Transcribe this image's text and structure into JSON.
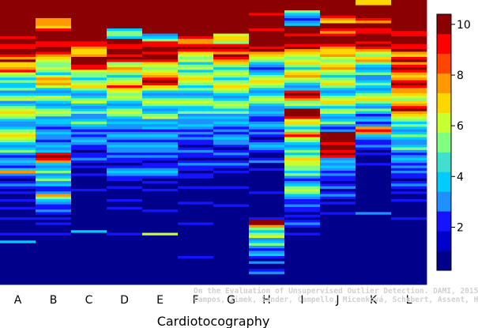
{
  "chart_data": {
    "type": "heatmap",
    "title": "",
    "xlabel": "Cardiotocography",
    "ylabel": "",
    "categories": [
      "A",
      "B",
      "C",
      "D",
      "E",
      "F",
      "G",
      "H",
      "I",
      "J",
      "K",
      "L"
    ],
    "colorbar": {
      "range": [
        0.3,
        10.4
      ],
      "ticks": [
        2,
        4,
        6,
        8,
        10
      ],
      "colors": [
        "#00008b",
        "#0000cd",
        "#1414ff",
        "#1e90ff",
        "#00ccff",
        "#40e0d0",
        "#80ff80",
        "#c8ff30",
        "#ffd700",
        "#ff9900",
        "#ff4500",
        "#ff0000",
        "#8b0000"
      ]
    },
    "rows_shown": 110,
    "columns": [
      [
        10,
        10,
        10,
        10,
        10,
        10,
        10,
        10,
        10,
        10,
        11,
        11,
        10,
        10,
        9,
        11,
        10,
        9,
        9,
        11,
        10,
        9,
        8,
        11,
        7,
        7,
        8,
        9,
        6,
        5,
        4,
        5,
        4,
        4,
        5,
        3,
        4,
        5,
        6,
        3,
        4,
        5,
        6,
        7,
        6,
        5,
        4,
        3,
        3,
        4,
        5,
        6,
        7,
        6,
        5,
        4,
        3,
        4,
        5,
        3,
        2,
        3,
        4,
        3,
        2,
        4,
        8,
        3,
        2,
        1,
        2,
        3,
        2,
        1,
        2,
        1,
        1,
        2,
        1,
        1,
        2,
        1,
        1,
        1,
        2,
        1,
        1,
        1,
        1,
        1,
        2,
        1,
        1,
        4,
        1,
        1,
        1,
        1,
        1,
        1,
        1,
        1,
        1,
        1,
        1,
        1,
        1,
        1,
        1,
        1
      ],
      [
        10,
        10,
        10,
        10,
        10,
        10,
        10,
        8,
        8,
        8,
        7,
        9,
        10,
        10,
        11,
        10,
        9,
        9,
        10,
        10,
        9,
        8,
        7,
        6,
        5,
        5,
        6,
        5,
        4,
        6,
        8,
        7,
        8,
        6,
        4,
        3,
        4,
        6,
        5,
        4,
        3,
        4,
        5,
        6,
        5,
        3,
        4,
        4,
        3,
        2,
        3,
        4,
        3,
        3,
        2,
        3,
        4,
        3,
        4,
        9,
        10,
        9,
        8,
        4,
        3,
        4,
        5,
        3,
        4,
        5,
        3,
        4,
        2,
        2,
        3,
        8,
        5,
        4,
        3,
        2,
        2,
        3,
        2,
        1,
        2,
        1,
        2,
        1,
        1,
        1,
        2,
        1,
        1,
        1,
        1,
        1,
        1,
        1,
        1,
        1,
        1,
        1,
        1,
        1,
        1,
        1,
        1,
        1,
        1,
        1
      ],
      [
        10,
        10,
        10,
        11,
        10,
        10,
        10,
        10,
        10,
        10,
        10,
        10,
        10,
        10,
        10,
        10,
        9,
        9,
        8,
        7,
        7,
        8,
        10,
        11,
        10,
        9,
        9,
        6,
        5,
        5,
        4,
        5,
        6,
        7,
        5,
        4,
        3,
        4,
        5,
        6,
        4,
        3,
        4,
        5,
        3,
        3,
        4,
        5,
        4,
        3,
        2,
        3,
        2,
        3,
        4,
        3,
        2,
        2,
        1,
        2,
        2,
        3,
        2,
        1,
        2,
        1,
        1,
        2,
        1,
        1,
        1,
        1,
        1,
        2,
        1,
        1,
        1,
        1,
        1,
        1,
        1,
        1,
        1,
        1,
        1,
        1,
        1,
        1,
        1,
        4,
        1,
        1,
        1,
        1,
        1,
        1,
        1,
        1,
        1,
        1,
        1,
        1,
        1,
        1,
        1,
        1,
        1,
        1,
        1,
        1
      ],
      [
        10,
        10,
        10,
        10,
        10,
        10,
        10,
        10,
        10,
        10,
        10,
        4,
        5,
        5,
        4,
        10,
        10,
        9,
        9,
        11,
        10,
        9,
        10,
        9,
        5,
        6,
        8,
        7,
        5,
        4,
        5,
        6,
        7,
        9,
        7,
        6,
        5,
        6,
        5,
        4,
        3,
        4,
        5,
        6,
        5,
        4,
        3,
        4,
        3,
        3,
        2,
        3,
        4,
        3,
        2,
        3,
        4,
        3,
        3,
        2,
        3,
        2,
        2,
        1,
        2,
        3,
        4,
        3,
        2,
        2,
        1,
        1,
        2,
        1,
        1,
        1,
        1,
        2,
        1,
        1,
        2,
        1,
        1,
        1,
        1,
        1,
        1,
        1,
        1,
        1,
        2,
        1,
        1,
        1,
        1,
        1,
        1,
        1,
        1,
        1,
        1,
        1,
        1,
        1,
        1,
        1,
        1,
        1,
        1,
        1
      ],
      [
        10,
        10,
        10,
        10,
        10,
        10,
        10,
        10,
        10,
        10,
        10,
        10,
        10,
        3,
        4,
        5,
        9,
        9,
        10,
        10,
        9,
        10,
        11,
        9,
        7,
        6,
        5,
        6,
        7,
        8,
        9,
        10,
        9,
        7,
        6,
        4,
        3,
        4,
        5,
        6,
        5,
        4,
        3,
        4,
        5,
        6,
        3,
        4,
        3,
        4,
        2,
        3,
        4,
        3,
        2,
        3,
        4,
        3,
        3,
        2,
        3,
        2,
        1,
        2,
        2,
        3,
        4,
        3,
        2,
        1,
        2,
        1,
        1,
        2,
        1,
        1,
        1,
        1,
        1,
        1,
        1,
        2,
        1,
        1,
        1,
        1,
        1,
        1,
        1,
        1,
        6,
        1,
        1,
        1,
        1,
        1,
        1,
        1,
        1,
        1,
        1,
        1,
        1,
        1,
        1,
        1,
        1,
        1,
        1,
        1
      ],
      [
        10,
        10,
        10,
        10,
        10,
        10,
        11,
        10,
        10,
        10,
        10,
        10,
        10,
        10,
        9,
        8,
        8,
        9,
        10,
        9,
        7,
        6,
        5,
        6,
        4,
        5,
        6,
        4,
        5,
        6,
        7,
        6,
        5,
        4,
        5,
        4,
        3,
        4,
        5,
        6,
        5,
        4,
        4,
        5,
        3,
        4,
        3,
        3,
        4,
        3,
        2,
        3,
        2,
        3,
        2,
        2,
        1,
        2,
        3,
        2,
        2,
        1,
        2,
        3,
        2,
        2,
        1,
        2,
        2,
        1,
        1,
        1,
        2,
        1,
        1,
        1,
        1,
        1,
        2,
        1,
        1,
        1,
        1,
        1,
        1,
        1,
        2,
        1,
        1,
        1,
        1,
        1,
        1,
        1,
        1,
        1,
        1,
        1,
        1,
        2,
        1,
        1,
        1,
        1,
        1,
        1,
        1,
        1,
        1,
        1
      ],
      [
        10,
        10,
        10,
        10,
        10,
        10,
        10,
        11,
        10,
        10,
        10,
        10,
        10,
        6,
        7,
        7,
        5,
        9,
        10,
        9,
        8,
        10,
        9,
        8,
        7,
        5,
        4,
        5,
        6,
        5,
        4,
        5,
        6,
        7,
        6,
        5,
        4,
        3,
        4,
        5,
        6,
        5,
        4,
        5,
        3,
        4,
        3,
        4,
        3,
        2,
        3,
        2,
        3,
        4,
        3,
        3,
        2,
        1,
        2,
        3,
        2,
        1,
        2,
        3,
        2,
        1,
        2,
        1,
        1,
        1,
        1,
        1,
        2,
        1,
        1,
        1,
        1,
        1,
        1,
        2,
        1,
        1,
        1,
        1,
        1,
        1,
        1,
        1,
        1,
        1,
        1,
        1,
        1,
        1,
        1,
        1,
        1,
        1,
        1,
        1,
        1,
        1,
        1,
        1,
        1,
        1,
        1,
        1,
        1,
        1
      ],
      [
        10,
        10,
        10,
        10,
        10,
        9,
        10,
        10,
        11,
        10,
        10,
        9,
        10,
        10,
        11,
        11,
        10,
        10,
        9,
        10,
        8,
        7,
        6,
        5,
        4,
        3,
        2,
        3,
        4,
        5,
        6,
        7,
        6,
        5,
        4,
        3,
        4,
        5,
        6,
        5,
        4,
        3,
        3,
        4,
        3,
        2,
        2,
        3,
        4,
        3,
        2,
        3,
        2,
        1,
        2,
        3,
        4,
        3,
        2,
        1,
        1,
        2,
        3,
        1,
        1,
        2,
        1,
        1,
        1,
        1,
        1,
        1,
        1,
        1,
        2,
        1,
        1,
        1,
        1,
        1,
        1,
        1,
        1,
        1,
        2,
        11,
        10,
        8,
        5,
        4,
        5,
        6,
        3,
        4,
        5,
        3,
        2,
        3,
        4,
        2,
        1,
        3,
        1,
        1,
        2,
        3,
        1,
        1,
        1,
        1
      ],
      [
        10,
        10,
        11,
        10,
        5,
        4,
        3,
        2,
        3,
        4,
        10,
        11,
        10,
        9,
        10,
        11,
        10,
        9,
        10,
        8,
        7,
        6,
        5,
        6,
        7,
        5,
        4,
        6,
        7,
        8,
        6,
        5,
        4,
        3,
        4,
        9,
        10,
        9,
        8,
        5,
        6,
        4,
        10,
        11,
        10,
        9,
        6,
        7,
        5,
        4,
        5,
        8,
        9,
        6,
        5,
        4,
        3,
        4,
        5,
        4,
        5,
        7,
        6,
        6,
        5,
        5,
        4,
        5,
        3,
        2,
        3,
        4,
        5,
        6,
        5,
        4,
        3,
        2,
        2,
        3,
        2,
        2,
        1,
        2,
        1,
        2,
        3,
        2,
        1,
        1,
        2,
        1,
        1,
        1,
        1,
        1,
        1,
        1,
        1,
        1,
        1,
        1,
        1,
        1,
        1,
        1,
        1,
        1,
        1,
        1
      ],
      [
        10,
        10,
        10,
        10,
        10,
        10,
        9,
        8,
        7,
        10,
        10,
        9,
        8,
        9,
        10,
        11,
        10,
        9,
        8,
        7,
        7,
        8,
        6,
        5,
        6,
        7,
        8,
        6,
        5,
        4,
        5,
        6,
        7,
        5,
        4,
        3,
        4,
        5,
        6,
        7,
        5,
        4,
        5,
        6,
        4,
        3,
        4,
        5,
        3,
        2,
        3,
        10,
        11,
        11,
        10,
        9,
        10,
        10,
        9,
        10,
        9,
        3,
        4,
        3,
        4,
        3,
        2,
        3,
        2,
        2,
        1,
        2,
        3,
        1,
        2,
        3,
        2,
        1,
        2,
        1,
        1,
        1,
        2,
        1,
        1,
        1,
        1,
        1,
        1,
        1,
        1,
        1,
        1,
        1,
        1,
        1,
        1,
        1,
        1,
        1,
        1,
        1,
        1,
        1,
        1,
        1,
        1,
        1,
        1,
        1
      ],
      [
        7,
        7,
        10,
        10,
        10,
        10,
        10,
        9,
        8,
        11,
        10,
        9,
        9,
        10,
        10,
        10,
        9,
        10,
        9,
        8,
        6,
        5,
        7,
        8,
        5,
        4,
        3,
        4,
        5,
        3,
        3,
        4,
        5,
        4,
        3,
        4,
        5,
        6,
        7,
        5,
        4,
        3,
        5,
        4,
        2,
        3,
        4,
        2,
        3,
        8,
        9,
        8,
        4,
        3,
        2,
        2,
        3,
        2,
        1,
        2,
        1,
        1,
        1,
        2,
        1,
        1,
        1,
        1,
        1,
        1,
        1,
        1,
        1,
        1,
        1,
        1,
        1,
        1,
        1,
        1,
        1,
        1,
        3,
        1,
        1,
        1,
        1,
        1,
        1,
        1,
        1,
        1,
        1,
        1,
        1,
        1,
        1,
        1,
        1,
        1,
        1,
        1,
        1,
        1,
        1,
        1,
        1,
        1,
        1,
        1
      ],
      [
        10,
        10,
        11,
        11,
        11,
        11,
        11,
        10,
        10,
        10,
        10,
        10,
        9,
        9,
        10,
        11,
        10,
        9,
        9,
        10,
        8,
        7,
        9,
        10,
        8,
        9,
        10,
        9,
        8,
        7,
        8,
        9,
        10,
        9,
        8,
        8,
        7,
        6,
        5,
        7,
        8,
        9,
        10,
        8,
        7,
        6,
        5,
        4,
        5,
        4,
        3,
        4,
        5,
        4,
        3,
        3,
        4,
        5,
        3,
        2,
        3,
        4,
        3,
        2,
        3,
        2,
        3,
        2,
        2,
        1,
        2,
        3,
        2,
        1,
        2,
        1,
        1,
        2,
        1,
        1,
        1,
        1,
        1,
        1,
        2,
        1,
        1,
        1,
        1,
        1,
        1,
        1,
        1,
        1,
        1,
        1,
        1,
        1,
        1,
        1,
        1,
        1,
        1,
        1,
        1,
        1,
        1,
        1,
        1,
        1
      ]
    ],
    "credit_lines": [
      "On the Evaluation of Unsupervised Outlier Detection. DAMI, 2015.",
      "Campos, Zimek, Sander, Campello, Micenková, Schubert, Assent, Houle"
    ]
  }
}
